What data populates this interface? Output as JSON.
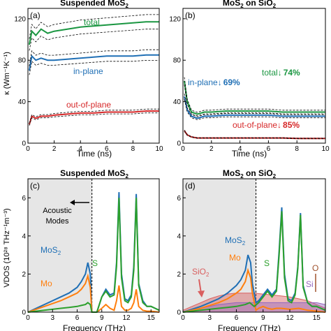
{
  "colors": {
    "total": "#1a9641",
    "inplane": "#1f6fb5",
    "outplane": "#d62728",
    "mos2": "#1f6fb5",
    "mo": "#ff7f0e",
    "s": "#2ca02c",
    "sio2": "#d95f5f",
    "si": "#9467bd",
    "o": "#a0522d",
    "shade": "#e6e6e6"
  },
  "chart_data": [
    {
      "id": "a",
      "type": "line",
      "panel_label": "(a)",
      "title": "Suspended MoS",
      "title_sub": "2",
      "xlabel": "Time (ns)",
      "ylabel": "κ (Wm⁻¹K⁻¹)",
      "xlim": [
        0,
        10
      ],
      "ylim": [
        0,
        130
      ],
      "xticks": [
        "0",
        "2",
        "4",
        "6",
        "8",
        "10"
      ],
      "yticks": [
        "0",
        "40",
        "80",
        "120"
      ],
      "series": [
        {
          "name": "total",
          "color_key": "total",
          "x": [
            0.1,
            0.3,
            0.6,
            1,
            1.5,
            2,
            3,
            4,
            5,
            6,
            7,
            8,
            9,
            10
          ],
          "y": [
            95,
            108,
            104,
            110,
            106,
            108,
            110,
            112,
            113,
            114,
            115,
            116,
            117,
            117
          ]
        },
        {
          "name": "in-plane",
          "color_key": "inplane",
          "x": [
            0.1,
            0.3,
            0.6,
            1,
            1.5,
            2,
            3,
            4,
            5,
            6,
            7,
            8,
            9,
            10
          ],
          "y": [
            70,
            84,
            80,
            82,
            80,
            80,
            81,
            82,
            83,
            84,
            84,
            84,
            85,
            85
          ]
        },
        {
          "name": "out-of-plane",
          "color_key": "outplane",
          "x": [
            0.1,
            0.3,
            0.6,
            1,
            1.5,
            2,
            3,
            4,
            5,
            6,
            7,
            8,
            9,
            10
          ],
          "y": [
            18,
            26,
            24,
            26,
            26,
            27,
            28,
            29,
            29,
            30,
            30,
            30,
            31,
            31
          ]
        }
      ]
    },
    {
      "id": "b",
      "type": "line",
      "panel_label": "(b)",
      "title": "MoS",
      "title_sub": "2",
      "title_rest": " on SiO",
      "title_sub2": "2",
      "xlabel": "Time (ns)",
      "xlim": [
        0,
        10
      ],
      "ylim": [
        0,
        130
      ],
      "xticks": [
        "0",
        "2",
        "4",
        "6",
        "8",
        "10"
      ],
      "yticks": [
        "0",
        "40",
        "80",
        "120"
      ],
      "series": [
        {
          "name": "total",
          "color_key": "total",
          "x": [
            0.1,
            0.3,
            0.6,
            1,
            1.5,
            2,
            3,
            4,
            5,
            6,
            7,
            8,
            9,
            10
          ],
          "y": [
            60,
            40,
            30,
            28,
            30,
            30,
            31,
            31,
            31,
            31,
            30,
            30,
            30,
            30
          ]
        },
        {
          "name": "in-plane",
          "color_key": "inplane",
          "x": [
            0.1,
            0.3,
            0.6,
            1,
            1.5,
            2,
            3,
            4,
            5,
            6,
            7,
            8,
            9,
            10
          ],
          "y": [
            45,
            32,
            26,
            24,
            26,
            26,
            27,
            27,
            27,
            27,
            26,
            26,
            26,
            26
          ]
        },
        {
          "name": "out-of-plane",
          "color_key": "outplane",
          "x": [
            0.1,
            0.3,
            0.6,
            1,
            1.5,
            2,
            3,
            4,
            5,
            6,
            7,
            8,
            9,
            10
          ],
          "y": [
            12,
            8,
            6,
            5,
            5,
            5,
            5,
            5,
            5,
            5,
            5,
            4.5,
            4.5,
            4.5
          ]
        }
      ],
      "annotations": {
        "inplane": "in-plane↓",
        "inplane_pct": "69%",
        "total": "total↓",
        "total_pct": "74%",
        "outplane": "out-of-plane↓",
        "outplane_pct": "85%"
      }
    },
    {
      "id": "c",
      "type": "line",
      "panel_label": "(c)",
      "title": "Suspended MoS",
      "title_sub": "2",
      "xlabel": "Frequency (THz)",
      "ylabel": "VDOS (10²⁸ THz⁻¹m⁻³)",
      "xlim": [
        0,
        16
      ],
      "ylim": [
        0,
        7
      ],
      "xticks": [
        "0",
        "3",
        "6",
        "9",
        "12",
        "15"
      ],
      "yticks": [
        "0",
        "2",
        "4",
        "6"
      ],
      "acoustic_cutoff": 7.8,
      "shade_label_1": "Acoustic",
      "shade_label_2": "Modes",
      "series": [
        {
          "name": "MoS₂",
          "color_key": "mos2",
          "x": [
            0,
            1,
            2,
            3,
            4,
            5,
            6,
            6.5,
            7,
            7.3,
            7.6,
            7.8,
            8.4,
            9,
            9.5,
            10,
            10.5,
            10.8,
            11.1,
            11.4,
            11.8,
            12.2,
            12.6,
            12.9,
            13.2,
            13.5,
            14,
            14.5,
            15,
            15.5,
            16
          ],
          "y": [
            0,
            0.2,
            0.4,
            0.6,
            0.8,
            1.0,
            1.3,
            1.6,
            2.0,
            2.6,
            2.0,
            0,
            0,
            0.8,
            1.2,
            0.9,
            1.0,
            2.6,
            6.3,
            2.0,
            0.7,
            0.6,
            0.9,
            2.4,
            6.2,
            1.5,
            0.6,
            0.3,
            0.3,
            0.2,
            0.1
          ]
        },
        {
          "name": "Mo",
          "color_key": "mo",
          "x": [
            0,
            1,
            2,
            3,
            4,
            5,
            6,
            6.5,
            7,
            7.3,
            7.6,
            7.8,
            8.4,
            9,
            9.5,
            10,
            10.5,
            10.8,
            11.1,
            11.4,
            11.8,
            12.2,
            12.6,
            12.9,
            13.2,
            13.5,
            14,
            14.5,
            15,
            15.5,
            16
          ],
          "y": [
            0,
            0.15,
            0.3,
            0.45,
            0.6,
            0.8,
            1.0,
            1.2,
            1.5,
            1.9,
            1.3,
            0,
            0,
            0.2,
            0.4,
            0.2,
            0.1,
            0.6,
            1.4,
            0.3,
            0.1,
            0.1,
            0.2,
            0.5,
            1.2,
            0.3,
            0.1,
            0.05,
            0.05,
            0.03,
            0
          ]
        },
        {
          "name": "S",
          "color_key": "s",
          "x": [
            0,
            1,
            2,
            3,
            4,
            5,
            6,
            6.5,
            7,
            7.3,
            7.6,
            7.8,
            8.4,
            9,
            9.5,
            10,
            10.5,
            10.8,
            11.1,
            11.4,
            11.8,
            12.2,
            12.6,
            12.9,
            13.2,
            13.5,
            14,
            14.5,
            15,
            15.5,
            16
          ],
          "y": [
            0,
            0.05,
            0.1,
            0.15,
            0.2,
            0.25,
            0.3,
            0.35,
            0.4,
            0.5,
            0.4,
            0,
            0,
            0.8,
            1.1,
            0.8,
            0.9,
            2.4,
            6.0,
            1.8,
            0.6,
            0.5,
            0.8,
            2.2,
            6.0,
            1.4,
            0.5,
            0.3,
            0.3,
            0.2,
            0.1
          ]
        }
      ],
      "labels": {
        "mos2": "MoS",
        "mos2_sub": "2",
        "mo": "Mo",
        "s": "S"
      }
    },
    {
      "id": "d",
      "type": "line",
      "panel_label": "(d)",
      "title": "MoS",
      "title_sub": "2",
      "title_rest": " on SiO",
      "title_sub2": "2",
      "xlabel": "Frequency (THz)",
      "xlim": [
        0,
        16
      ],
      "ylim": [
        0,
        7
      ],
      "xticks": [
        "0",
        "3",
        "6",
        "9",
        "12",
        "15"
      ],
      "yticks": [
        "0",
        "2",
        "4",
        "6"
      ],
      "acoustic_cutoff": 8.2,
      "series": [
        {
          "name": "SiO₂",
          "color_key": "sio2",
          "fill": true,
          "x": [
            0,
            1,
            2,
            3,
            4,
            5,
            6,
            7,
            8,
            9,
            10,
            11,
            12,
            13,
            14,
            15,
            16
          ],
          "y": [
            0.1,
            0.3,
            0.5,
            0.7,
            0.85,
            0.95,
            1.0,
            1.0,
            1.0,
            0.95,
            0.9,
            0.85,
            0.8,
            0.7,
            0.6,
            0.4,
            0.2
          ]
        },
        {
          "name": "Si",
          "color_key": "si",
          "fill": true,
          "x": [
            0,
            1,
            2,
            3,
            4,
            5,
            6,
            7,
            8,
            9,
            10,
            11,
            12,
            13,
            14,
            15,
            16
          ],
          "y": [
            0.05,
            0.1,
            0.2,
            0.3,
            0.4,
            0.45,
            0.5,
            0.5,
            0.5,
            0.5,
            0.5,
            0.5,
            0.5,
            0.5,
            0.5,
            0.5,
            0.4
          ]
        },
        {
          "name": "MoS₂",
          "color_key": "mos2",
          "x": [
            0,
            1,
            2,
            3,
            4,
            5,
            6,
            6.5,
            7,
            7.3,
            7.6,
            7.8,
            8.2,
            8.5,
            9,
            9.5,
            10,
            10.5,
            10.8,
            11.1,
            11.4,
            11.8,
            12.2,
            12.6,
            12.9,
            13.2,
            13.5,
            14,
            14.5,
            15,
            15.5,
            16
          ],
          "y": [
            0,
            0.15,
            0.3,
            0.5,
            0.7,
            1.0,
            1.4,
            1.7,
            2.2,
            3.0,
            2.6,
            1.5,
            0.5,
            0.6,
            0.9,
            1.2,
            0.9,
            1.2,
            3.2,
            5.5,
            2.0,
            0.7,
            0.6,
            1.0,
            2.4,
            5.2,
            1.4,
            0.5,
            0.3,
            0.3,
            0.2,
            0.1
          ]
        },
        {
          "name": "Mo",
          "color_key": "mo",
          "x": [
            0,
            1,
            2,
            3,
            4,
            5,
            6,
            6.5,
            7,
            7.3,
            7.6,
            7.8,
            8.2,
            8.5,
            9,
            9.5,
            10,
            10.5,
            11,
            12,
            13,
            14,
            15,
            16
          ],
          "y": [
            0,
            0.1,
            0.2,
            0.35,
            0.5,
            0.7,
            1.0,
            1.2,
            1.6,
            2.2,
            1.8,
            1.0,
            0.1,
            0.2,
            0.3,
            0.2,
            0.15,
            0.2,
            0.2,
            0.15,
            0.2,
            0.1,
            0.05,
            0
          ]
        },
        {
          "name": "S",
          "color_key": "s",
          "x": [
            0,
            1,
            2,
            3,
            4,
            5,
            6,
            7,
            7.5,
            8,
            8.5,
            9,
            9.5,
            10,
            10.5,
            10.8,
            11.1,
            11.4,
            11.8,
            12.2,
            12.6,
            12.9,
            13.2,
            13.5,
            14,
            14.5,
            15,
            15.5,
            16
          ],
          "y": [
            0,
            0.05,
            0.1,
            0.15,
            0.2,
            0.25,
            0.3,
            0.4,
            0.5,
            0.3,
            0.5,
            0.8,
            1.1,
            0.8,
            1.1,
            3.0,
            5.3,
            1.8,
            0.6,
            0.5,
            0.9,
            2.3,
            5.1,
            1.3,
            0.5,
            0.3,
            0.3,
            0.2,
            0.1
          ]
        }
      ],
      "labels": {
        "mos2": "MoS",
        "mos2_sub": "2",
        "mo": "Mo",
        "s": "S",
        "sio2": "SiO",
        "sio2_sub": "2",
        "o": "O",
        "si": "Si"
      }
    }
  ]
}
